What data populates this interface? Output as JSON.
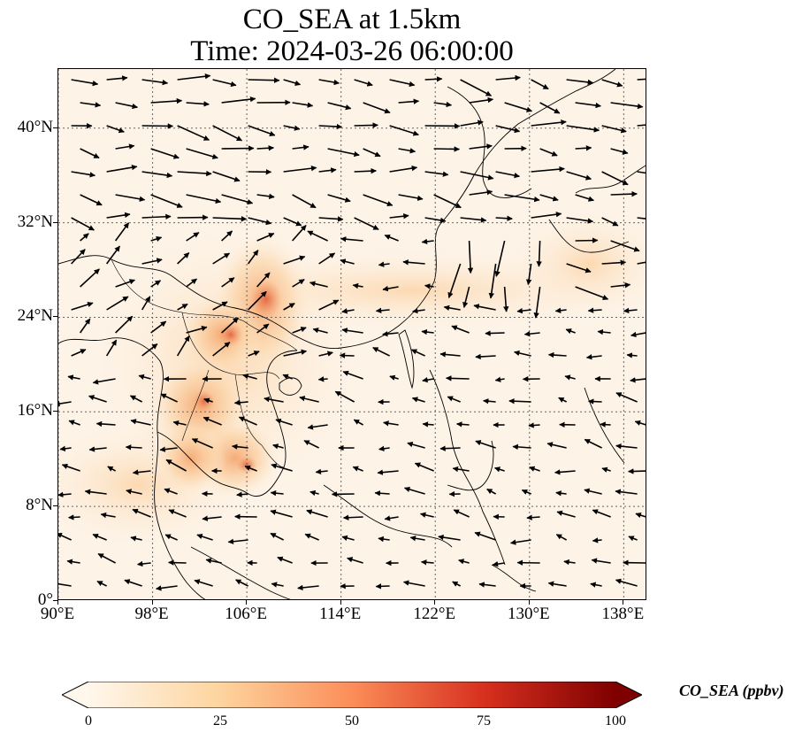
{
  "title": {
    "line1": "CO_SEA at 1.5km",
    "line2": "Time: 2024-03-26 06:00:00"
  },
  "map": {
    "lon_range": [
      90,
      140
    ],
    "lat_range": [
      0,
      45
    ],
    "gridlines": "dotted",
    "x_ticks": [
      {
        "value": 90,
        "label": "90°E"
      },
      {
        "value": 98,
        "label": "98°E"
      },
      {
        "value": 106,
        "label": "106°E"
      },
      {
        "value": 114,
        "label": "114°E"
      },
      {
        "value": 122,
        "label": "122°E"
      },
      {
        "value": 130,
        "label": "130°E"
      },
      {
        "value": 138,
        "label": "138°E"
      }
    ],
    "y_ticks": [
      {
        "value": 0,
        "label": "0°"
      },
      {
        "value": 8,
        "label": "8°N"
      },
      {
        "value": 16,
        "label": "16°N"
      },
      {
        "value": 24,
        "label": "24°N"
      },
      {
        "value": 32,
        "label": "32°N"
      },
      {
        "value": 40,
        "label": "40°N"
      }
    ],
    "field_colormap": "OrRd",
    "vector_color": "#000000"
  },
  "colorbar": {
    "title": "CO_SEA (ppbv)",
    "min": 0,
    "max": 100,
    "extend": "both",
    "ticks": [
      {
        "value": 0,
        "label": "0"
      },
      {
        "value": 25,
        "label": "25"
      },
      {
        "value": 50,
        "label": "50"
      },
      {
        "value": 75,
        "label": "75"
      },
      {
        "value": 100,
        "label": "100"
      }
    ],
    "colors": [
      "#fff7ec",
      "#fdd49e",
      "#fc8d59",
      "#d7301f",
      "#7f0000"
    ]
  }
}
